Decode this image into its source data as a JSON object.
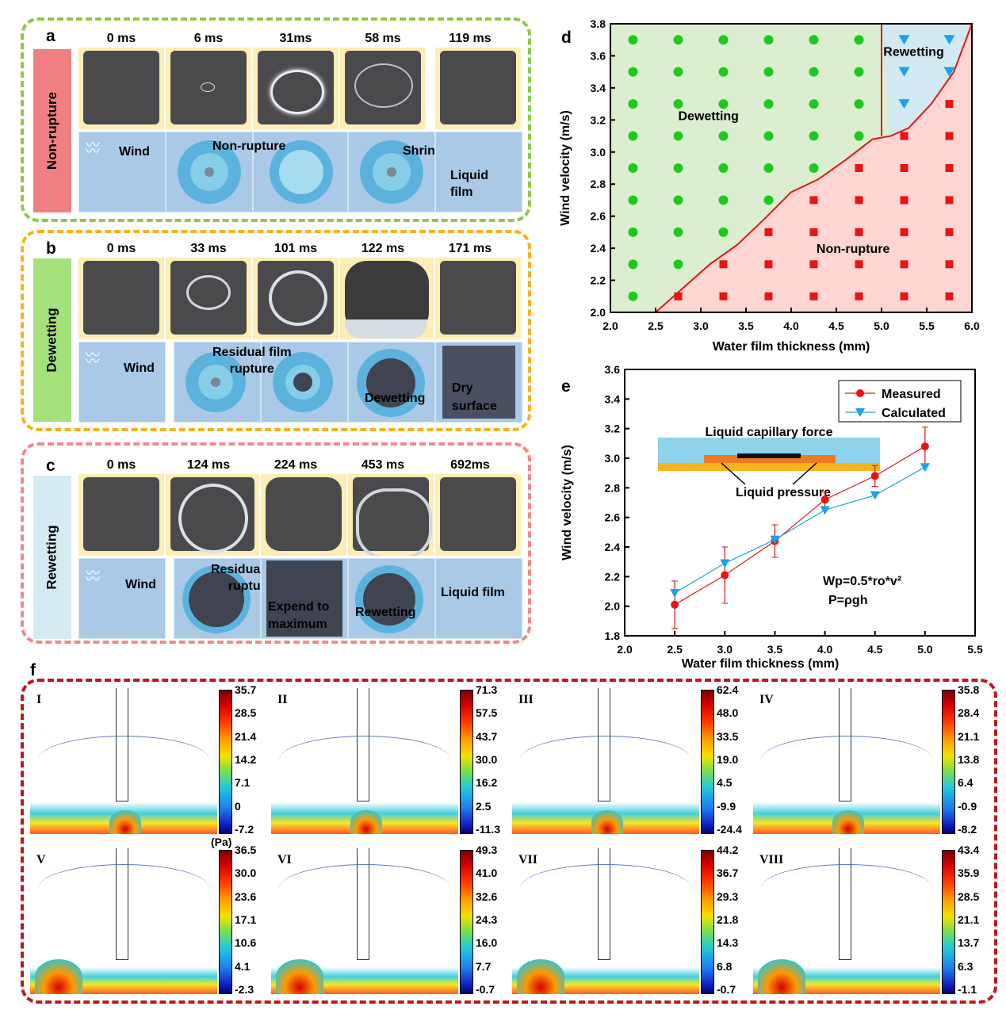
{
  "panel_a": {
    "label": "a",
    "side": "Non-rupture",
    "times": [
      "0 ms",
      "6 ms",
      "31ms",
      "58 ms",
      "119 ms"
    ],
    "schem": {
      "wind": "Wind",
      "center": "Non-rupture",
      "shrink": "Shrinking",
      "film": "Liquid\nfilm"
    }
  },
  "panel_b": {
    "label": "b",
    "side": "Dewetting",
    "times": [
      "0 ms",
      "33 ms",
      "101 ms",
      "122 ms",
      "171 ms"
    ],
    "schem": {
      "wind": "Wind",
      "residual": "Residual film\nrupture",
      "dewet": "Dewetting",
      "dry": "Dry\nsurface"
    }
  },
  "panel_c": {
    "label": "c",
    "side": "Rewetting",
    "times": [
      "0 ms",
      "124 ms",
      "224 ms",
      "453 ms",
      "692ms"
    ],
    "schem": {
      "wind": "Wind",
      "residual": "Residual film\nrupture",
      "expand": "Expend to\nmaximum",
      "rewet": "Rewetting",
      "film": "Liquid film"
    }
  },
  "panel_d": {
    "label": "d",
    "regions": {
      "dewet": "Dewetting",
      "rewet": "Rewetting",
      "nonrup": "Non-rupture"
    },
    "colors": {
      "dewet": "#dbeed0",
      "rewet": "#d2e9f1",
      "nonrup": "#fdd5d3",
      "green": "#1ec81e",
      "red": "#e61414",
      "blue": "#1aa3e6"
    }
  },
  "panel_e": {
    "label": "e",
    "inset": {
      "cap": "Liquid capillary force",
      "press": "Liquid pressure"
    },
    "eq1": "Wp=0.5*ro*v²",
    "eq2": "P=ρgh"
  },
  "panel_f": {
    "label": "f",
    "unit": "(Pa)",
    "plots": [
      {
        "id": "I",
        "ticks": [
          "35.7",
          "28.5",
          "21.4",
          "14.2",
          "7.1",
          "0",
          "-7.2"
        ]
      },
      {
        "id": "II",
        "ticks": [
          "71.3",
          "57.5",
          "43.7",
          "30.0",
          "16.2",
          "2.5",
          "-11.3"
        ]
      },
      {
        "id": "III",
        "ticks": [
          "62.4",
          "48.0",
          "33.5",
          "19.0",
          "4.5",
          "-9.9",
          "-24.4"
        ]
      },
      {
        "id": "IV",
        "ticks": [
          "35.8",
          "28.4",
          "21.1",
          "13.8",
          "6.4",
          "-0.9",
          "-8.2"
        ]
      },
      {
        "id": "V",
        "ticks": [
          "36.5",
          "30.0",
          "23.6",
          "17.1",
          "10.6",
          "4.1",
          "-2.3"
        ]
      },
      {
        "id": "VI",
        "ticks": [
          "49.3",
          "41.0",
          "32.6",
          "24.3",
          "16.0",
          "7.7",
          "-0.7"
        ]
      },
      {
        "id": "VII",
        "ticks": [
          "44.2",
          "36.7",
          "29.3",
          "21.8",
          "14.3",
          "6.8",
          "-0.7"
        ]
      },
      {
        "id": "VIII",
        "ticks": [
          "43.4",
          "35.9",
          "28.5",
          "21.1",
          "13.7",
          "6.3",
          "-1.1"
        ]
      }
    ]
  },
  "chart_data": [
    {
      "type": "scatter",
      "xlabel": "Water film thickness (mm)",
      "ylabel": "Wind velocity (m/s)",
      "xlim": [
        2.0,
        6.0
      ],
      "ylim": [
        2.0,
        3.8
      ],
      "xticks": [
        "2.0",
        "2.5",
        "3.0",
        "3.5",
        "4.0",
        "4.5",
        "5.0",
        "5.5",
        "6.0"
      ],
      "yticks": [
        "2.0",
        "2.2",
        "2.4",
        "2.6",
        "2.8",
        "3.0",
        "3.2",
        "3.4",
        "3.6",
        "3.8"
      ],
      "x_grid": [
        2.25,
        2.75,
        3.25,
        3.75,
        4.25,
        4.75,
        5.25,
        5.75
      ],
      "y_grid": [
        2.1,
        2.3,
        2.5,
        2.7,
        2.9,
        3.1,
        3.3,
        3.5,
        3.7
      ],
      "boundary_x": [
        2.5,
        2.8,
        3.1,
        3.4,
        3.7,
        4.0,
        4.3,
        4.6,
        4.9,
        5.1,
        5.3,
        5.55,
        5.8,
        6.0
      ],
      "boundary_y": [
        2.0,
        2.15,
        2.3,
        2.42,
        2.58,
        2.75,
        2.83,
        2.95,
        3.08,
        3.1,
        3.15,
        3.3,
        3.5,
        3.8
      ],
      "rewet_divider_x": 5.0
    },
    {
      "type": "line",
      "xlabel": "Water film thickness (mm)",
      "ylabel": "Wind velocity (m/s)",
      "xlim": [
        2.0,
        5.5
      ],
      "ylim": [
        1.8,
        3.6
      ],
      "xticks": [
        "2.0",
        "2.5",
        "3.0",
        "3.5",
        "4.0",
        "4.5",
        "5.0",
        "5.5"
      ],
      "yticks": [
        "1.8",
        "2.0",
        "2.2",
        "2.4",
        "2.6",
        "2.8",
        "3.0",
        "3.2",
        "3.4",
        "3.6"
      ],
      "x": [
        2.5,
        3.0,
        3.5,
        4.0,
        4.5,
        5.0
      ],
      "series": [
        {
          "name": "Measured",
          "values": [
            2.01,
            2.21,
            2.44,
            2.72,
            2.88,
            3.08
          ],
          "err": [
            0.16,
            0.19,
            0.11,
            0.05,
            0.07,
            0.13
          ],
          "color": "#e61414"
        },
        {
          "name": "Calculated",
          "values": [
            2.09,
            2.29,
            2.45,
            2.65,
            2.75,
            2.94
          ],
          "color": "#1aa3e6"
        }
      ],
      "legend": "top-right"
    }
  ]
}
